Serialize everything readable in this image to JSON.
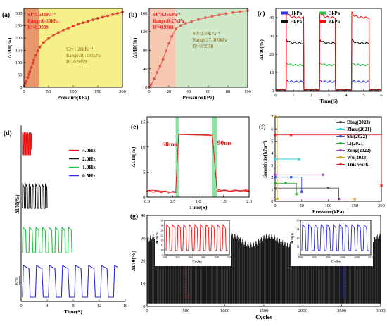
{
  "chart_data": [
    {
      "panel": "(a)",
      "type": "line",
      "xlabel": "Pressure(kPa)",
      "ylabel": "ΔI/I0(%)",
      "xlim": [
        0,
        200
      ],
      "ylim": [
        0,
        320
      ],
      "xticks": [
        "0",
        "50",
        "100",
        "150",
        "200"
      ],
      "yticks": [
        "0",
        "50",
        "100",
        "150",
        "200",
        "250",
        "300"
      ],
      "regions": [
        {
          "range": [
            0,
            30
          ],
          "color": "#e8976a"
        },
        {
          "range": [
            30,
            200
          ],
          "color": "#f6f08a"
        }
      ],
      "annotations": [
        {
          "lines": [
            "S1=5.51kPa⁻¹",
            "Range:0-30kPa",
            "R²=0.9989"
          ],
          "color": "#e82020"
        },
        {
          "lines": [
            "S2=1.28kPa⁻¹",
            "Range:30-200kPa",
            "R²=0.9859"
          ],
          "color": "#8a6a1a"
        }
      ],
      "series": [
        {
          "x": [
            1,
            3,
            5,
            8,
            10,
            12,
            15,
            18,
            20,
            24,
            28,
            32,
            40,
            50,
            60,
            70,
            80,
            90,
            100,
            110,
            120,
            130,
            140,
            150,
            160,
            170,
            180,
            190,
            200
          ],
          "y": [
            5,
            15,
            25,
            40,
            52,
            63,
            80,
            98,
            110,
            130,
            148,
            163,
            182,
            198,
            212,
            222,
            232,
            240,
            248,
            256,
            262,
            268,
            274,
            280,
            285,
            290,
            295,
            300,
            305
          ],
          "color": "#e04030"
        }
      ]
    },
    {
      "panel": "(b)",
      "type": "line",
      "xlabel": "Pressure(kPa)",
      "ylabel": "ΔI/I0(%)",
      "xlim": [
        0,
        100
      ],
      "ylim": [
        0,
        170
      ],
      "xticks": [
        "0",
        "20",
        "40",
        "60",
        "80",
        "100"
      ],
      "yticks": [
        "0",
        "40",
        "80",
        "120",
        "160"
      ],
      "regions": [
        {
          "range": [
            0,
            27
          ],
          "color": "#f7c9b3"
        },
        {
          "range": [
            27,
            100
          ],
          "color": "#cfe8c9"
        }
      ],
      "annotations": [
        {
          "lines": [
            "S1=4.35kPa⁻¹",
            "Range:0-27kPa",
            "R²=0.9988"
          ],
          "color": "#e82020"
        },
        {
          "lines": [
            "S2=0.59kPa⁻¹",
            "Range:27-100kPa",
            "R²=0.9958"
          ],
          "color": "#8a6a1a"
        }
      ],
      "series": [
        {
          "x": [
            0,
            2,
            5,
            8,
            11,
            14,
            17,
            20,
            23,
            27,
            32,
            37,
            43,
            50,
            57,
            64,
            71,
            78,
            85,
            92,
            100
          ],
          "y": [
            0,
            6,
            18,
            32,
            46,
            60,
            78,
            95,
            110,
            126,
            133,
            138,
            142,
            146,
            150,
            153,
            156,
            159,
            161,
            163,
            165
          ],
          "color": "#e06050"
        }
      ]
    },
    {
      "panel": "(c)",
      "type": "line",
      "xlabel": "Time(S)",
      "ylabel": "ΔI/I0(%)",
      "xlim": [
        0,
        6
      ],
      "ylim": [
        0,
        45
      ],
      "xticks": [
        "0",
        "1",
        "2",
        "3",
        "4",
        "5",
        "6"
      ],
      "yticks": [
        "0",
        "10",
        "20",
        "30",
        "40"
      ],
      "legend": [
        "1kPa",
        "3kPa",
        "5kPa",
        "8kPa"
      ],
      "legend_position": "top",
      "series": [
        {
          "name": "1kPa",
          "plateau": 5,
          "color": "#2a2ae0"
        },
        {
          "name": "3kPa",
          "plateau": 14,
          "color": "#20c040"
        },
        {
          "name": "5kPa",
          "plateau": 26,
          "color": "#111111"
        },
        {
          "name": "8kPa",
          "plateau": 40,
          "color": "#ee1010"
        }
      ],
      "pulses": [
        [
          0.6,
          1.6
        ],
        [
          2.5,
          3.4
        ],
        [
          4.3,
          5.3
        ]
      ]
    },
    {
      "panel": "(d)",
      "type": "line",
      "xlabel": "Time(S)",
      "ylabel": "ΔI/I0(%)",
      "xlim": [
        0,
        16
      ],
      "xticks": [
        "0",
        "4",
        "8",
        "12",
        "16"
      ],
      "scale_bar": "10%",
      "legend": [
        "4.0Hz",
        "2.0Hz",
        "1.0Hz",
        "0.5Hz"
      ],
      "legend_position": "top-right",
      "series": [
        {
          "name": "4.0Hz",
          "freq": 4.0,
          "color": "#ee1010"
        },
        {
          "name": "2.0Hz",
          "freq": 2.0,
          "color": "#111111"
        },
        {
          "name": "1.0Hz",
          "freq": 1.0,
          "color": "#20c040"
        },
        {
          "name": "0.5Hz",
          "freq": 0.5,
          "color": "#2a2ae0"
        }
      ]
    },
    {
      "panel": "(e)",
      "type": "line",
      "xlabel": "Time(S)",
      "ylabel": "ΔI/I0(%)",
      "xlim": [
        0,
        2.0
      ],
      "ylim": [
        0,
        16
      ],
      "xticks": [
        "0.0",
        "0.5",
        "1.0",
        "1.5",
        "2.0"
      ],
      "yticks": [
        "0",
        "5",
        "10",
        "15"
      ],
      "annotations": [
        "60ms",
        "90ms"
      ],
      "highlight_ranges": [
        [
          0.56,
          0.62
        ],
        [
          1.28,
          1.37
        ]
      ],
      "series": [
        {
          "x": [
            0,
            0.1,
            0.2,
            0.3,
            0.4,
            0.5,
            0.56,
            0.62,
            0.7,
            0.8,
            0.9,
            1.0,
            1.1,
            1.2,
            1.28,
            1.37,
            1.45,
            1.55,
            1.65,
            1.75,
            1.85,
            1.95,
            2.0
          ],
          "y": [
            1.2,
            1.4,
            1.3,
            1.2,
            1.1,
            1.0,
            0.9,
            12.6,
            12.5,
            12.5,
            12.4,
            12.5,
            12.4,
            12.4,
            12.3,
            1.6,
            1.3,
            1.3,
            1.2,
            1.3,
            1.3,
            1.2,
            1.2
          ],
          "color": "#e02020"
        }
      ]
    },
    {
      "panel": "(f)",
      "type": "line",
      "xlabel": "Pressure(kPa)",
      "ylabel": "Sensitivity(kPa⁻¹)",
      "xlim": [
        0,
        200
      ],
      "ylim": [
        0,
        7
      ],
      "xticks": [
        "0",
        "50",
        "100",
        "150",
        "200"
      ],
      "yticks": [
        "0",
        "1",
        "2",
        "3",
        "4",
        "5",
        "6",
        "7"
      ],
      "legend_position": "top-right",
      "series": [
        {
          "name": "Ding(2023)",
          "color": "#555555",
          "x": [
            0,
            100,
            120
          ],
          "y": [
            1.1,
            1.1,
            0.2
          ]
        },
        {
          "name": "Zhou(2021)",
          "color": "#30d0e0",
          "x": [
            0,
            45
          ],
          "y": [
            3.5,
            3.5
          ]
        },
        {
          "name": "Shi(2022)",
          "color": "#3050e0",
          "x": [
            0,
            30,
            50
          ],
          "y": [
            2.0,
            2.0,
            0.8
          ]
        },
        {
          "name": "Li(2021)",
          "color": "#20b030",
          "x": [
            0,
            20,
            40
          ],
          "y": [
            1.5,
            1.5,
            0.6
          ]
        },
        {
          "name": "Zeng(2022)",
          "color": "#b040d0",
          "x": [
            0,
            90
          ],
          "y": [
            2.2,
            2.2
          ]
        },
        {
          "name": "Wu(2023)",
          "color": "#d0a020",
          "x": [
            0,
            4,
            150
          ],
          "y": [
            7.0,
            0.2,
            0.2
          ]
        },
        {
          "name": "This work",
          "color": "#e02020",
          "x": [
            0,
            30,
            200
          ],
          "y": [
            5.5,
            5.5,
            1.3
          ]
        }
      ]
    },
    {
      "panel": "(g)",
      "type": "line",
      "xlabel": "Cycles",
      "ylabel": "ΔI/I0(%)",
      "xlim": [
        0,
        3000
      ],
      "ylim": [
        0,
        40
      ],
      "xticks": [
        "0",
        "500",
        "1000",
        "1500",
        "2000",
        "2500",
        "3000"
      ],
      "yticks": [
        "0",
        "10",
        "20",
        "30",
        "40"
      ],
      "insets": [
        {
          "xlabel": "Cycles",
          "ylabel": "ΔI/I0(%)",
          "xticks": [
            "500",
            "502",
            "504",
            "506",
            "508",
            "510"
          ],
          "yticks": [
            "6",
            "10",
            "14",
            "18",
            "22",
            "26",
            "30",
            "34"
          ],
          "color": "#ee1010"
        },
        {
          "xlabel": "Cycles",
          "ylabel": "ΔI/I0(%)",
          "xticks": [
            "2500",
            "2502",
            "2504",
            "2506",
            "2508",
            "2510"
          ],
          "yticks": [
            "6",
            "12",
            "18",
            "24",
            "30"
          ],
          "color": "#2a2ae0"
        }
      ],
      "series": [
        {
          "base": 1,
          "peak": 30,
          "color": "#000000"
        }
      ]
    }
  ]
}
